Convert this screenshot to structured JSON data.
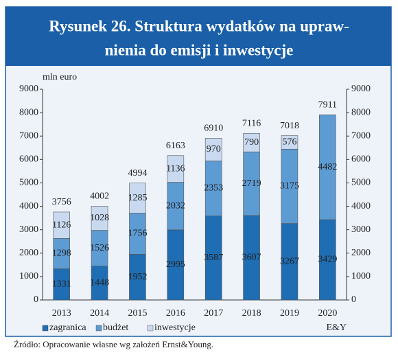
{
  "chart_data": {
    "type": "stacked_bar",
    "title": [
      "Rysunek 26. Struktura wydatków na upraw-",
      "nienia do emisji i inwestycje"
    ],
    "y_label": "mln euro",
    "categories": [
      "2013",
      "2014",
      "2015",
      "2016",
      "2017",
      "2018",
      "2019",
      "2020"
    ],
    "series": [
      {
        "name": "zagranica",
        "color": "#1f6db3",
        "values": [
          1331,
          1448,
          1952,
          2995,
          3587,
          3607,
          3267,
          3429
        ]
      },
      {
        "name": "budżet",
        "color": "#5d9bd3",
        "values": [
          1298,
          1526,
          1756,
          2032,
          2353,
          2719,
          3175,
          4482
        ]
      },
      {
        "name": "inwestycje",
        "color": "#c9daf0",
        "values": [
          1126,
          1028,
          1285,
          1136,
          970,
          790,
          576,
          null
        ]
      }
    ],
    "totals": [
      3756,
      4002,
      4994,
      6163,
      6910,
      7116,
      7018,
      7911
    ],
    "ylim": [
      0,
      9000
    ],
    "yticks": [
      0,
      1000,
      2000,
      3000,
      4000,
      5000,
      6000,
      7000,
      8000,
      9000
    ],
    "y2lim": [
      0,
      9000
    ],
    "y2ticks": [
      0,
      1000,
      2000,
      3000,
      4000,
      5000,
      6000,
      7000,
      8000,
      9000
    ],
    "credit": "E&Y",
    "source": "Źródło: Opracowanie własne wg założeń Ernst&Young."
  }
}
